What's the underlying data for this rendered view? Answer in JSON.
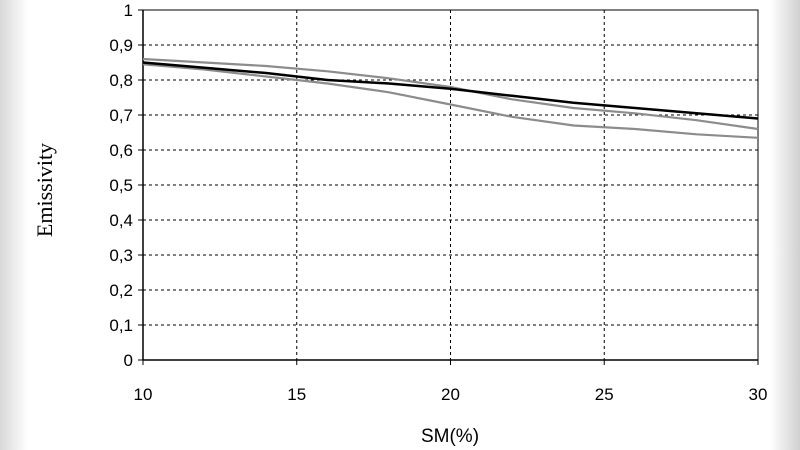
{
  "chart_data": {
    "type": "line",
    "xlabel": "SM(%)",
    "ylabel": "Emissivity",
    "xlim": [
      10,
      30
    ],
    "ylim": [
      0,
      1
    ],
    "x_ticks": [
      "10",
      "15",
      "20",
      "25",
      "30"
    ],
    "x_tick_values": [
      10,
      15,
      20,
      25,
      30
    ],
    "y_ticks": [
      "0",
      "0,1",
      "0,2",
      "0,3",
      "0,4",
      "0,5",
      "0,6",
      "0,7",
      "0,8",
      "0,9",
      "1"
    ],
    "y_tick_values": [
      0,
      0.1,
      0.2,
      0.3,
      0.4,
      0.5,
      0.6,
      0.7,
      0.8,
      0.9,
      1
    ],
    "grid": true,
    "series": [
      {
        "color": "#000000",
        "x": [
          10,
          12,
          14,
          16,
          18,
          20,
          22,
          24,
          26,
          28,
          30
        ],
        "values": [
          0.85,
          0.835,
          0.82,
          0.8,
          0.79,
          0.775,
          0.755,
          0.735,
          0.72,
          0.705,
          0.69
        ]
      },
      {
        "color": "#8c8c8c",
        "x": [
          10,
          12,
          14,
          16,
          18,
          20,
          22,
          24,
          26,
          28,
          30
        ],
        "values": [
          0.86,
          0.85,
          0.84,
          0.825,
          0.805,
          0.78,
          0.745,
          0.72,
          0.705,
          0.685,
          0.66
        ]
      },
      {
        "color": "#8c8c8c",
        "x": [
          10,
          12,
          14,
          16,
          18,
          20,
          22,
          24,
          26,
          28,
          30
        ],
        "values": [
          0.845,
          0.83,
          0.81,
          0.79,
          0.765,
          0.73,
          0.695,
          0.67,
          0.66,
          0.645,
          0.635
        ]
      }
    ]
  }
}
